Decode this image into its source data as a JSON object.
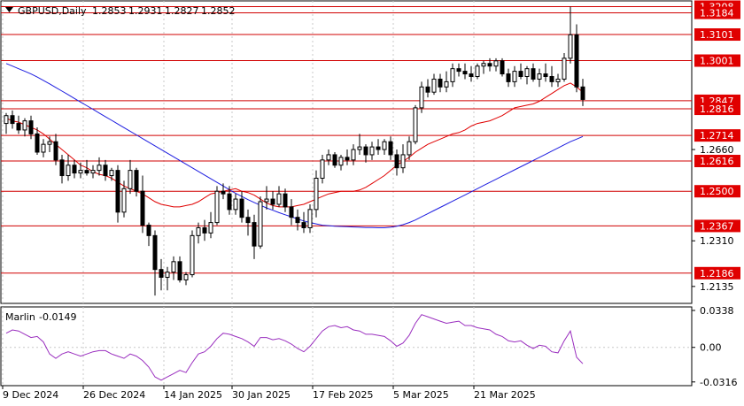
{
  "header": {
    "menu_icon": "triangle-down-icon",
    "symbol": "GBPUSD,Daily",
    "open": "1.2853",
    "high": "1.2931",
    "low": "1.2827",
    "close": "1.2852"
  },
  "oscillator": {
    "name": "Marlin",
    "value": "-0.0149",
    "axis_labels": [
      "0.0338",
      "0.00",
      "-0.0316"
    ]
  },
  "colors": {
    "candle": "#000000",
    "level_line": "#d10000",
    "level_badge": "#e00000",
    "ma_fast": "#e00000",
    "ma_slow": "#1d1de0",
    "oscillator": "#9a2fbf",
    "grid": "#c8c8c8",
    "axis": "#000000"
  },
  "chart_data": [
    {
      "type": "candlestick",
      "title": "GBPUSD,Daily",
      "ylim": [
        1.207,
        1.323
      ],
      "x_tick_labels": [
        "9 Dec 2024",
        "26 Dec 2024",
        "14 Jan 2025",
        "30 Jan 2025",
        "17 Feb 2025",
        "5 Mar 2025",
        "21 Mar 2025"
      ],
      "y_tick_labels": [
        "1.2660",
        "1.2310",
        "1.2135"
      ],
      "horizontal_levels": [
        1.3208,
        1.3184,
        1.3101,
        1.3001,
        1.2847,
        1.2816,
        1.2714,
        1.2616,
        1.25,
        1.2367,
        1.2186
      ],
      "candles": [
        [
          1.276,
          1.28,
          1.272,
          1.279
        ],
        [
          1.279,
          1.281,
          1.274,
          1.276
        ],
        [
          1.276,
          1.279,
          1.272,
          1.2735
        ],
        [
          1.2735,
          1.278,
          1.271,
          1.277
        ],
        [
          1.277,
          1.279,
          1.27,
          1.272
        ],
        [
          1.272,
          1.2745,
          1.264,
          1.265
        ],
        [
          1.265,
          1.27,
          1.263,
          1.268
        ],
        [
          1.268,
          1.271,
          1.265,
          1.269
        ],
        [
          1.269,
          1.272,
          1.26,
          1.262
        ],
        [
          1.262,
          1.264,
          1.253,
          1.256
        ],
        [
          1.256,
          1.264,
          1.254,
          1.26
        ],
        [
          1.26,
          1.262,
          1.255,
          1.257
        ],
        [
          1.257,
          1.261,
          1.255,
          1.258
        ],
        [
          1.258,
          1.262,
          1.256,
          1.257
        ],
        [
          1.257,
          1.26,
          1.255,
          1.258
        ],
        [
          1.258,
          1.263,
          1.256,
          1.26
        ],
        [
          1.26,
          1.262,
          1.254,
          1.256
        ],
        [
          1.256,
          1.259,
          1.254,
          1.258
        ],
        [
          1.258,
          1.26,
          1.238,
          1.242
        ],
        [
          1.242,
          1.254,
          1.24,
          1.251
        ],
        [
          1.251,
          1.262,
          1.249,
          1.258
        ],
        [
          1.258,
          1.259,
          1.248,
          1.25
        ],
        [
          1.25,
          1.256,
          1.234,
          1.237
        ],
        [
          1.237,
          1.238,
          1.229,
          1.233
        ],
        [
          1.233,
          1.235,
          1.21,
          1.22
        ],
        [
          1.22,
          1.224,
          1.212,
          1.217
        ],
        [
          1.217,
          1.221,
          1.212,
          1.219
        ],
        [
          1.219,
          1.225,
          1.216,
          1.223
        ],
        [
          1.223,
          1.225,
          1.215,
          1.216
        ],
        [
          1.216,
          1.219,
          1.214,
          1.218
        ],
        [
          1.218,
          1.235,
          1.217,
          1.233
        ],
        [
          1.233,
          1.238,
          1.23,
          1.236
        ],
        [
          1.236,
          1.239,
          1.231,
          1.234
        ],
        [
          1.234,
          1.242,
          1.232,
          1.238
        ],
        [
          1.238,
          1.252,
          1.237,
          1.25
        ],
        [
          1.25,
          1.253,
          1.247,
          1.249
        ],
        [
          1.249,
          1.252,
          1.241,
          1.243
        ],
        [
          1.243,
          1.249,
          1.241,
          1.247
        ],
        [
          1.247,
          1.25,
          1.238,
          1.24
        ],
        [
          1.24,
          1.243,
          1.233,
          1.238
        ],
        [
          1.238,
          1.241,
          1.224,
          1.229
        ],
        [
          1.229,
          1.248,
          1.228,
          1.246
        ],
        [
          1.246,
          1.252,
          1.243,
          1.247
        ],
        [
          1.247,
          1.25,
          1.243,
          1.245
        ],
        [
          1.245,
          1.252,
          1.244,
          1.249
        ],
        [
          1.249,
          1.251,
          1.242,
          1.244
        ],
        [
          1.244,
          1.247,
          1.237,
          1.24
        ],
        [
          1.24,
          1.243,
          1.235,
          1.238
        ],
        [
          1.238,
          1.242,
          1.234,
          1.236
        ],
        [
          1.236,
          1.245,
          1.234,
          1.243
        ],
        [
          1.243,
          1.258,
          1.24,
          1.255
        ],
        [
          1.255,
          1.264,
          1.253,
          1.262
        ],
        [
          1.262,
          1.266,
          1.26,
          1.264
        ],
        [
          1.264,
          1.265,
          1.259,
          1.26
        ],
        [
          1.26,
          1.264,
          1.258,
          1.263
        ],
        [
          1.263,
          1.266,
          1.26,
          1.262
        ],
        [
          1.262,
          1.268,
          1.26,
          1.266
        ],
        [
          1.266,
          1.272,
          1.264,
          1.267
        ],
        [
          1.267,
          1.268,
          1.261,
          1.264
        ],
        [
          1.264,
          1.269,
          1.262,
          1.267
        ],
        [
          1.267,
          1.27,
          1.264,
          1.266
        ],
        [
          1.266,
          1.27,
          1.264,
          1.269
        ],
        [
          1.269,
          1.271,
          1.262,
          1.264
        ],
        [
          1.264,
          1.266,
          1.256,
          1.259
        ],
        [
          1.259,
          1.268,
          1.257,
          1.264
        ],
        [
          1.264,
          1.271,
          1.262,
          1.269
        ],
        [
          1.269,
          1.283,
          1.268,
          1.282
        ],
        [
          1.282,
          1.292,
          1.28,
          1.29
        ],
        [
          1.29,
          1.293,
          1.286,
          1.288
        ],
        [
          1.288,
          1.295,
          1.287,
          1.293
        ],
        [
          1.293,
          1.295,
          1.288,
          1.29
        ],
        [
          1.29,
          1.296,
          1.288,
          1.292
        ],
        [
          1.292,
          1.299,
          1.29,
          1.297
        ],
        [
          1.297,
          1.299,
          1.294,
          1.296
        ],
        [
          1.296,
          1.299,
          1.293,
          1.295
        ],
        [
          1.295,
          1.298,
          1.292,
          1.294
        ],
        [
          1.294,
          1.299,
          1.293,
          1.298
        ],
        [
          1.298,
          1.3,
          1.295,
          1.299
        ],
        [
          1.299,
          1.301,
          1.296,
          1.298
        ],
        [
          1.298,
          1.301,
          1.296,
          1.3
        ],
        [
          1.3,
          1.301,
          1.294,
          1.295
        ],
        [
          1.295,
          1.297,
          1.29,
          1.292
        ],
        [
          1.292,
          1.298,
          1.29,
          1.296
        ],
        [
          1.296,
          1.299,
          1.293,
          1.294
        ],
        [
          1.294,
          1.298,
          1.291,
          1.297
        ],
        [
          1.297,
          1.299,
          1.292,
          1.293
        ],
        [
          1.293,
          1.297,
          1.29,
          1.295
        ],
        [
          1.295,
          1.299,
          1.292,
          1.294
        ],
        [
          1.294,
          1.298,
          1.29,
          1.292
        ],
        [
          1.292,
          1.295,
          1.29,
          1.293
        ],
        [
          1.293,
          1.303,
          1.292,
          1.301
        ],
        [
          1.301,
          1.3208,
          1.299,
          1.31
        ],
        [
          1.31,
          1.314,
          1.288,
          1.29
        ],
        [
          1.29,
          1.2931,
          1.2827,
          1.2852
        ]
      ],
      "series": [
        {
          "type": "line",
          "values": [
            1.278,
            1.277,
            1.2765,
            1.2755,
            1.2745,
            1.2735,
            1.272,
            1.27,
            1.268,
            1.266,
            1.264,
            1.262,
            1.26,
            1.259,
            1.2575,
            1.2565,
            1.256,
            1.255,
            1.2535,
            1.252,
            1.251,
            1.25,
            1.249,
            1.2475,
            1.246,
            1.245,
            1.2445,
            1.244,
            1.244,
            1.2445,
            1.245,
            1.246,
            1.2475,
            1.249,
            1.2495,
            1.25,
            1.2505,
            1.251,
            1.25,
            1.2495,
            1.2485,
            1.247,
            1.2455,
            1.2445,
            1.244,
            1.244,
            1.244,
            1.2445,
            1.245,
            1.246,
            1.247,
            1.248,
            1.249,
            1.2495,
            1.25,
            1.25,
            1.25,
            1.2505,
            1.2515,
            1.253,
            1.2545,
            1.256,
            1.258,
            1.26,
            1.2615,
            1.263,
            1.265,
            1.2665,
            1.268,
            1.269,
            1.27,
            1.271,
            1.272,
            1.2725,
            1.2735,
            1.275,
            1.276,
            1.2765,
            1.277,
            1.278,
            1.279,
            1.2805,
            1.282,
            1.2825,
            1.283,
            1.2835,
            1.2845,
            1.286,
            1.2875,
            1.289,
            1.2905,
            1.2915,
            1.29,
            1.288
          ]
        },
        {
          "type": "line",
          "values": [
            1.299,
            1.298,
            1.297,
            1.296,
            1.295,
            1.2938,
            1.2925,
            1.2912,
            1.2898,
            1.2884,
            1.287,
            1.2856,
            1.2842,
            1.2828,
            1.2814,
            1.28,
            1.2786,
            1.2772,
            1.2758,
            1.2744,
            1.273,
            1.2716,
            1.2702,
            1.2688,
            1.2674,
            1.266,
            1.2646,
            1.2632,
            1.2618,
            1.2604,
            1.259,
            1.2576,
            1.2562,
            1.2548,
            1.2534,
            1.252,
            1.2506,
            1.2492,
            1.248,
            1.2468,
            1.2457,
            1.2446,
            1.2436,
            1.2427,
            1.2418,
            1.241,
            1.2402,
            1.2394,
            1.2386,
            1.238,
            1.2375,
            1.237,
            1.2368,
            1.2366,
            1.2365,
            1.2364,
            1.2363,
            1.2362,
            1.2361,
            1.2361,
            1.236,
            1.236,
            1.2362,
            1.2366,
            1.2372,
            1.238,
            1.239,
            1.2402,
            1.2414,
            1.2426,
            1.2438,
            1.245,
            1.2462,
            1.2474,
            1.2486,
            1.2498,
            1.251,
            1.2522,
            1.2534,
            1.2546,
            1.2558,
            1.257,
            1.2582,
            1.2594,
            1.2606,
            1.2618,
            1.263,
            1.2642,
            1.2654,
            1.2666,
            1.2678,
            1.269,
            1.27,
            1.271
          ]
        }
      ]
    },
    {
      "type": "line",
      "title": "Marlin -0.0149",
      "ylim": [
        -0.035,
        0.037
      ],
      "y_tick_labels": [
        "0.0338",
        "0.00",
        "-0.0316"
      ],
      "series": [
        {
          "name": "Marlin",
          "values": [
            0.013,
            0.016,
            0.015,
            0.012,
            0.009,
            0.01,
            0.005,
            -0.006,
            -0.01,
            -0.006,
            -0.004,
            -0.006,
            -0.008,
            -0.006,
            -0.004,
            -0.003,
            -0.003,
            -0.006,
            -0.008,
            -0.01,
            -0.006,
            -0.008,
            -0.012,
            -0.018,
            -0.027,
            -0.03,
            -0.027,
            -0.024,
            -0.021,
            -0.023,
            -0.014,
            -0.006,
            -0.004,
            0.001,
            0.008,
            0.013,
            0.012,
            0.01,
            0.008,
            0.005,
            0.001,
            0.009,
            0.009,
            0.007,
            0.008,
            0.006,
            0.003,
            -0.001,
            -0.004,
            0.001,
            0.008,
            0.015,
            0.019,
            0.02,
            0.018,
            0.019,
            0.016,
            0.015,
            0.012,
            0.012,
            0.011,
            0.01,
            0.006,
            0.001,
            0.004,
            0.011,
            0.022,
            0.03,
            0.028,
            0.026,
            0.024,
            0.022,
            0.023,
            0.024,
            0.02,
            0.02,
            0.018,
            0.017,
            0.016,
            0.012,
            0.01,
            0.006,
            0.005,
            0.006,
            0.002,
            -0.001,
            0.002,
            0.001,
            -0.004,
            -0.005,
            0.006,
            0.015,
            -0.009,
            -0.0149
          ]
        }
      ]
    }
  ]
}
